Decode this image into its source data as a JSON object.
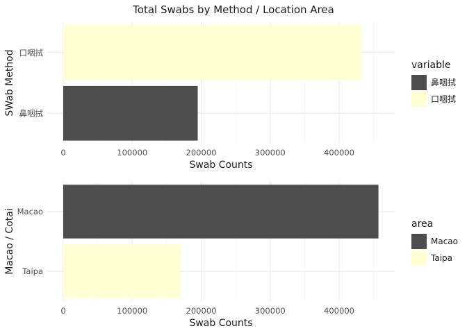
{
  "title": "Total Swabs by Method / Location Area",
  "chart_data": [
    {
      "type": "bar",
      "orientation": "horizontal",
      "xlabel": "Swab Counts",
      "ylabel": "SWab Method",
      "xlim": [
        0,
        460000
      ],
      "x_ticks": [
        0,
        100000,
        200000,
        300000,
        400000
      ],
      "x_tick_labels": [
        "0",
        "100000",
        "200000",
        "300000",
        "400000"
      ],
      "grid": true,
      "legend_position": "right",
      "legend": {
        "title": "variable",
        "entries": [
          {
            "label": "鼻咽拭",
            "color": "#4d4d4d"
          },
          {
            "label": "口咽拭",
            "color": "#ffffd4"
          }
        ]
      },
      "categories": [
        "口咽拭",
        "鼻咽拭"
      ],
      "values": [
        433000,
        195000
      ],
      "colors": [
        "#ffffd4",
        "#4d4d4d"
      ]
    },
    {
      "type": "bar",
      "orientation": "horizontal",
      "xlabel": "Swab Counts",
      "ylabel": "Macao / Cotai",
      "xlim": [
        0,
        460000
      ],
      "x_ticks": [
        0,
        100000,
        200000,
        300000,
        400000
      ],
      "x_tick_labels": [
        "0",
        "100000",
        "200000",
        "300000",
        "400000"
      ],
      "grid": true,
      "legend_position": "right",
      "legend": {
        "title": "area",
        "entries": [
          {
            "label": "Macao",
            "color": "#4d4d4d"
          },
          {
            "label": "Taipa",
            "color": "#ffffd4"
          }
        ]
      },
      "categories": [
        "Macao",
        "Taipa"
      ],
      "values": [
        457000,
        170000
      ],
      "colors": [
        "#4d4d4d",
        "#ffffd4"
      ]
    }
  ]
}
